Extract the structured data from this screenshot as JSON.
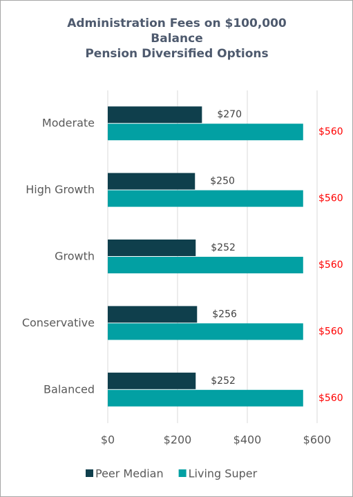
{
  "chart_data": {
    "type": "hbar",
    "title": [
      "Administration Fees on $100,000 Balance",
      "Pension Diversified Options"
    ],
    "categories": [
      "Moderate",
      "High Growth",
      "Growth",
      "Conservative",
      "Balanced"
    ],
    "series": [
      {
        "name": "Peer Median",
        "color": "#0f3f4c",
        "values": [
          270,
          250,
          252,
          256,
          252
        ],
        "value_labels": [
          "$270",
          "$250",
          "$252",
          "$256",
          "$252"
        ],
        "label_color": "#404040"
      },
      {
        "name": "Living Super",
        "color": "#02a0a3",
        "values": [
          560,
          560,
          560,
          560,
          560
        ],
        "value_labels": [
          "$560",
          "$560",
          "$560",
          "$560",
          "$560"
        ],
        "label_color": "#ff0000"
      }
    ],
    "xlim": [
      0,
      600
    ],
    "xticks": [
      {
        "value": 0,
        "label": "$0"
      },
      {
        "value": 200,
        "label": "$200"
      },
      {
        "value": 400,
        "label": "$400"
      },
      {
        "value": 600,
        "label": "$600"
      }
    ],
    "grid": true,
    "legend": "bottom"
  }
}
